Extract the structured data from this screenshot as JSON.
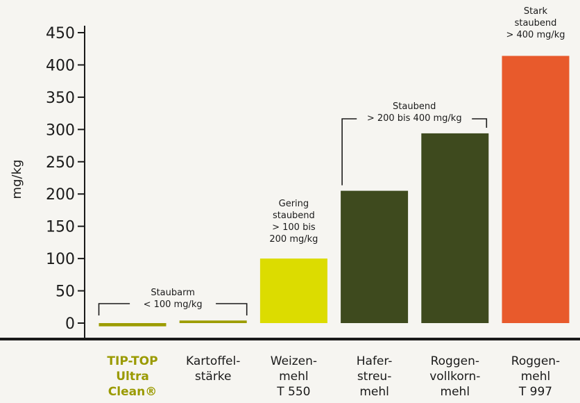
{
  "chart_data": {
    "type": "bar",
    "ylabel": "mg/kg",
    "ylim": [
      0,
      450
    ],
    "y_ticks": [
      0,
      50,
      100,
      150,
      200,
      250,
      300,
      350,
      400,
      450
    ],
    "categories": [
      [
        "TIP-TOP",
        "Ultra",
        "Clean®"
      ],
      [
        "Kartoffel-",
        "stärke"
      ],
      [
        "Weizen-",
        "mehl",
        "T 550"
      ],
      [
        "Hafer-",
        "streu-",
        "mehl"
      ],
      [
        "Roggen-",
        "vollkorn-",
        "mehl"
      ],
      [
        "Roggen-",
        "mehl",
        "T 997"
      ]
    ],
    "values": [
      -5,
      4,
      100,
      205,
      294,
      414
    ],
    "bar_colors": [
      "#9c9c00",
      "#9c9c00",
      "#dcdc00",
      "#3e4a1e",
      "#3e4a1e",
      "#e85a2c"
    ],
    "highlight_category_color": "#9a9a00",
    "annotations": [
      {
        "lines": [
          "Staubarm",
          "< 100 mg/kg"
        ],
        "bracket": true
      },
      {
        "lines": [
          "Gering",
          "staubend",
          "> 100 bis",
          "200 mg/kg"
        ],
        "bracket": false
      },
      {
        "lines": [
          "Staubend",
          "> 200 bis 400 mg/kg"
        ],
        "bracket": true
      },
      {
        "lines": [
          "Stark",
          "staubend",
          "> 400 mg/kg"
        ],
        "bracket": false
      }
    ]
  }
}
